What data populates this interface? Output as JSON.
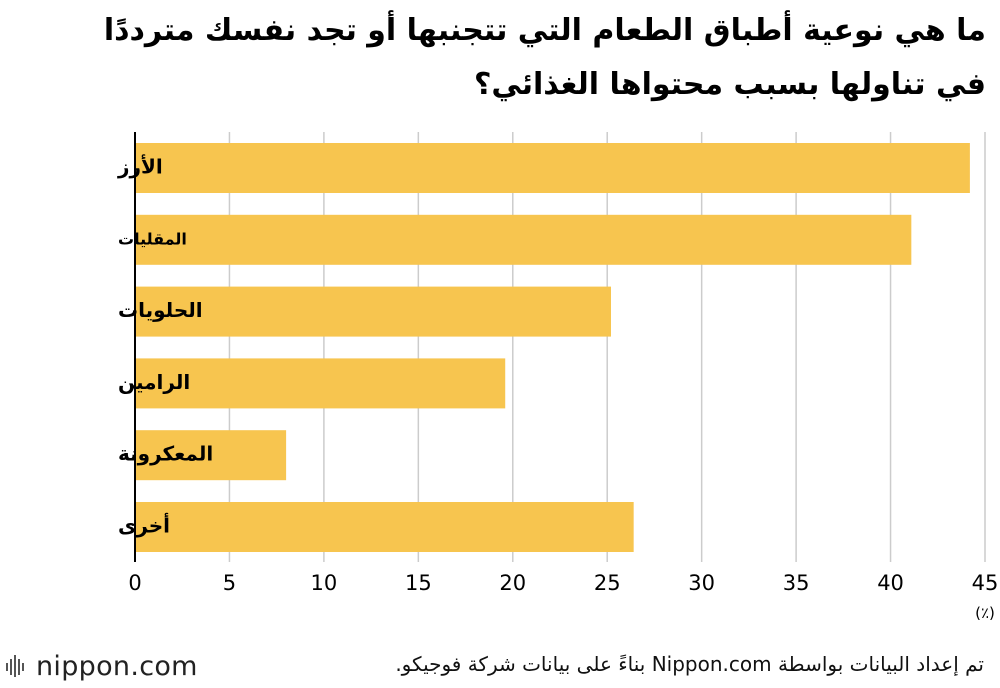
{
  "title_lines": [
    "ما هي نوعية أطباق الطعام التي تتجنبها أو تجد نفسك مترددًا",
    "في تناولها بسبب محتواها الغذائي؟"
  ],
  "source": "تم إعداد البيانات بواسطة Nippon.com بناءً على بيانات  شركة فوجيكو.",
  "logo": {
    "text": "nippon.com"
  },
  "colors": {
    "bar": "#F7C54F",
    "grid": "#cccccc",
    "axis": "#000000"
  },
  "chart_data": {
    "type": "bar",
    "orientation": "horizontal",
    "categories": [
      "الأرز",
      "المقليات",
      "الحلويات",
      "الرامين",
      "المعكرونة",
      "أخرى"
    ],
    "values": [
      44.2,
      41.1,
      25.2,
      19.6,
      8.0,
      26.4
    ],
    "xlim": [
      0,
      45
    ],
    "xticks": [
      0,
      5,
      10,
      15,
      20,
      25,
      30,
      35,
      40,
      45
    ],
    "unit_label": "(٪)",
    "grid": true
  }
}
